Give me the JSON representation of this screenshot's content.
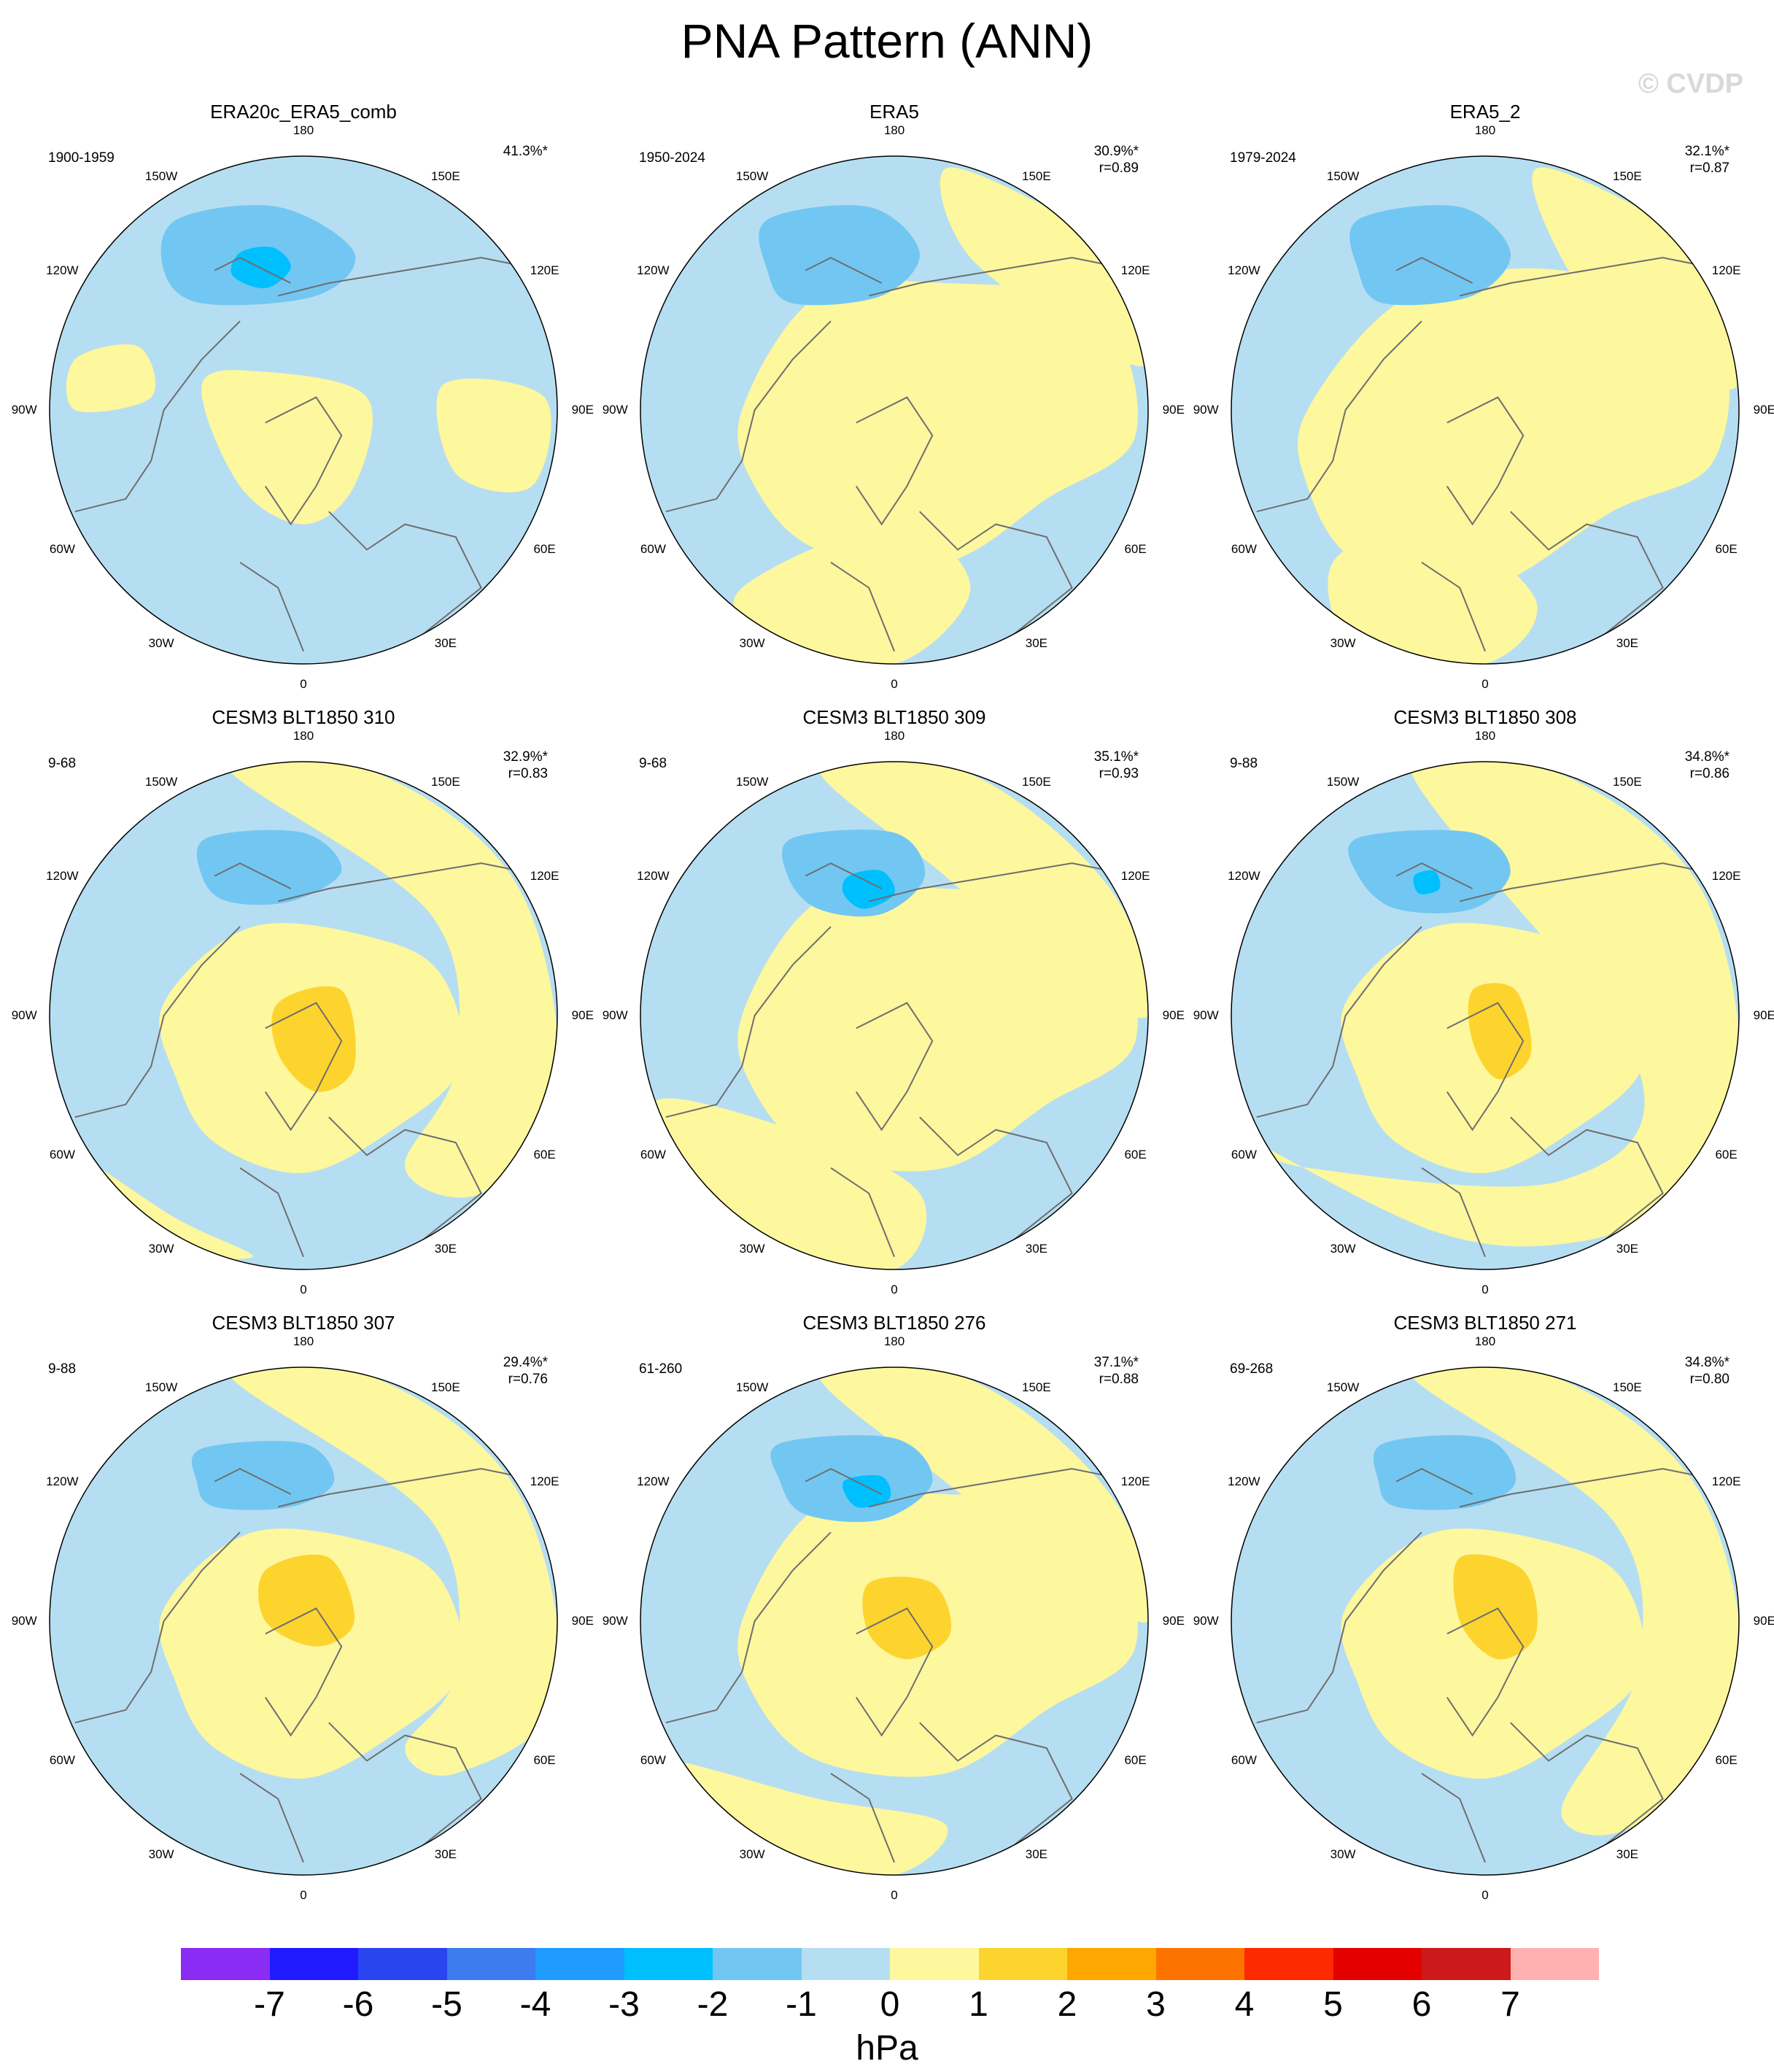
{
  "title": "PNA Pattern (ANN)",
  "credit": "© CVDP",
  "longitude_labels": [
    "180",
    "150E",
    "120E",
    "90E",
    "60E",
    "30E",
    "0",
    "30W",
    "60W",
    "90W",
    "120W",
    "150W"
  ],
  "panels": [
    {
      "title": "ERA20c_ERA5_comb",
      "period": "1900-1959",
      "variance": "41.3%*",
      "correlation": ""
    },
    {
      "title": "ERA5",
      "period": "1950-2024",
      "variance": "30.9%*",
      "correlation": "r=0.89"
    },
    {
      "title": "ERA5_2",
      "period": "1979-2024",
      "variance": "32.1%*",
      "correlation": "r=0.87"
    },
    {
      "title": "CESM3 BLT1850 310",
      "period": "9-68",
      "variance": "32.9%*",
      "correlation": "r=0.83"
    },
    {
      "title": "CESM3 BLT1850 309",
      "period": "9-68",
      "variance": "35.1%*",
      "correlation": "r=0.93"
    },
    {
      "title": "CESM3 BLT1850 308",
      "period": "9-88",
      "variance": "34.8%*",
      "correlation": "r=0.86"
    },
    {
      "title": "CESM3 BLT1850 307",
      "period": "9-88",
      "variance": "29.4%*",
      "correlation": "r=0.76"
    },
    {
      "title": "CESM3 BLT1850 276",
      "period": "61-260",
      "variance": "37.1%*",
      "correlation": "r=0.88"
    },
    {
      "title": "CESM3 BLT1850 271",
      "period": "69-268",
      "variance": "34.8%*",
      "correlation": "r=0.80"
    }
  ],
  "colorbar": {
    "unit": "hPa",
    "ticks": [
      "-7",
      "-6",
      "-5",
      "-4",
      "-3",
      "-2",
      "-1",
      "0",
      "1",
      "2",
      "3",
      "4",
      "5",
      "6",
      "7"
    ],
    "colors": [
      "#8b2cf5",
      "#1f1aff",
      "#2a44f0",
      "#3c7cf0",
      "#1f9bff",
      "#00bfff",
      "#72c7f2",
      "#b6def2",
      "#fdf79e",
      "#fdd42e",
      "#fda700",
      "#fd7300",
      "#fd2a00",
      "#e50000",
      "#cc1a1a",
      "#ffb0b0"
    ]
  },
  "colors": {
    "negative_1": "#b6def2",
    "negative_2": "#72c7f2",
    "negative_3": "#00bfff",
    "positive_1": "#fdf79e",
    "positive_2": "#fdd42e",
    "coast": "#6e6e6e"
  }
}
